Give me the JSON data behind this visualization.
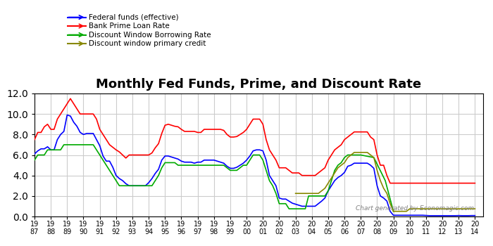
{
  "title": "Monthly Fed Funds, Prime, and Discount Rate",
  "xlabel": "",
  "ylabel": "",
  "ylim": [
    0.0,
    12.0
  ],
  "yticks": [
    0.0,
    2.0,
    4.0,
    6.0,
    8.0,
    10.0,
    12.0
  ],
  "background_color": "#ffffff",
  "grid_color": "#cccccc",
  "watermark": "Chart generated by Economagic.com",
  "legend": [
    {
      "label": "Federal funds (effective)",
      "color": "#0000ff"
    },
    {
      "label": "Bank Prime Loan Rate",
      "color": "#ff0000"
    },
    {
      "label": "Discount Window Borrowing Rate",
      "color": "#00aa00"
    },
    {
      "label": "Discount window primary credit",
      "color": "#888800"
    }
  ],
  "fed_funds": {
    "x": [
      1987.0,
      1987.2,
      1987.4,
      1987.6,
      1987.8,
      1988.0,
      1988.2,
      1988.4,
      1988.6,
      1988.8,
      1989.0,
      1989.2,
      1989.4,
      1989.6,
      1989.8,
      1990.0,
      1990.2,
      1990.4,
      1990.6,
      1990.8,
      1991.0,
      1991.2,
      1991.4,
      1991.6,
      1991.8,
      1992.0,
      1992.2,
      1992.4,
      1992.6,
      1992.8,
      1993.0,
      1993.2,
      1993.4,
      1993.6,
      1993.8,
      1994.0,
      1994.2,
      1994.4,
      1994.6,
      1994.8,
      1995.0,
      1995.2,
      1995.4,
      1995.6,
      1995.8,
      1996.0,
      1996.2,
      1996.4,
      1996.6,
      1996.8,
      1997.0,
      1997.2,
      1997.4,
      1997.6,
      1997.8,
      1998.0,
      1998.2,
      1998.4,
      1998.6,
      1998.8,
      1999.0,
      1999.2,
      1999.4,
      1999.6,
      1999.8,
      2000.0,
      2000.2,
      2000.4,
      2000.6,
      2000.8,
      2001.0,
      2001.2,
      2001.4,
      2001.6,
      2001.8,
      2002.0,
      2002.2,
      2002.4,
      2002.6,
      2002.8,
      2003.0,
      2003.2,
      2003.4,
      2003.6,
      2003.8,
      2004.0,
      2004.2,
      2004.4,
      2004.6,
      2004.8,
      2005.0,
      2005.2,
      2005.4,
      2005.6,
      2005.8,
      2006.0,
      2006.2,
      2006.4,
      2006.6,
      2006.8,
      2007.0,
      2007.2,
      2007.4,
      2007.6,
      2007.8,
      2008.0,
      2008.2,
      2008.4,
      2008.6,
      2008.8,
      2009.0,
      2009.2,
      2009.4,
      2009.6,
      2009.8,
      2010.0,
      2010.2,
      2010.4,
      2010.6,
      2010.8,
      2011.0,
      2011.2,
      2011.4,
      2011.6,
      2011.8,
      2012.0,
      2012.2,
      2012.4,
      2012.6,
      2012.8,
      2013.0,
      2013.2,
      2013.4,
      2013.6,
      2013.8,
      2014.0
    ],
    "y": [
      6.1,
      6.4,
      6.6,
      6.6,
      6.8,
      6.5,
      6.5,
      7.5,
      8.0,
      8.3,
      9.9,
      9.8,
      9.2,
      8.8,
      8.2,
      8.0,
      8.1,
      8.1,
      8.1,
      7.5,
      6.9,
      5.9,
      5.4,
      5.4,
      4.8,
      4.0,
      3.7,
      3.5,
      3.2,
      3.0,
      3.0,
      3.0,
      3.0,
      3.0,
      3.0,
      3.3,
      3.7,
      4.2,
      4.6,
      5.5,
      5.9,
      5.9,
      5.8,
      5.7,
      5.6,
      5.4,
      5.3,
      5.3,
      5.3,
      5.2,
      5.3,
      5.3,
      5.5,
      5.5,
      5.5,
      5.5,
      5.4,
      5.3,
      5.2,
      4.9,
      4.7,
      4.7,
      4.8,
      5.0,
      5.2,
      5.5,
      5.9,
      6.4,
      6.5,
      6.5,
      6.4,
      5.5,
      4.0,
      3.5,
      3.0,
      1.8,
      1.7,
      1.7,
      1.5,
      1.3,
      1.2,
      1.1,
      1.0,
      1.0,
      1.0,
      1.0,
      1.0,
      1.25,
      1.5,
      1.8,
      2.5,
      3.0,
      3.5,
      3.8,
      4.0,
      4.3,
      4.9,
      5.0,
      5.2,
      5.2,
      5.2,
      5.2,
      5.2,
      5.0,
      4.7,
      3.0,
      2.0,
      1.8,
      1.5,
      0.5,
      0.12,
      0.12,
      0.12,
      0.12,
      0.12,
      0.12,
      0.12,
      0.12,
      0.12,
      0.12,
      0.1,
      0.08,
      0.08,
      0.08,
      0.08,
      0.08,
      0.08,
      0.08,
      0.08,
      0.08,
      0.09,
      0.08,
      0.08,
      0.08,
      0.09,
      0.09
    ]
  },
  "prime": {
    "x": [
      1987.0,
      1987.2,
      1987.4,
      1987.6,
      1987.8,
      1988.0,
      1988.2,
      1988.4,
      1988.6,
      1988.8,
      1989.0,
      1989.2,
      1989.4,
      1989.6,
      1989.8,
      1990.0,
      1990.2,
      1990.4,
      1990.6,
      1990.8,
      1991.0,
      1991.2,
      1991.4,
      1991.6,
      1991.8,
      1992.0,
      1992.2,
      1992.4,
      1992.6,
      1992.8,
      1993.0,
      1993.2,
      1993.4,
      1993.6,
      1993.8,
      1994.0,
      1994.2,
      1994.4,
      1994.6,
      1994.8,
      1995.0,
      1995.2,
      1995.4,
      1995.6,
      1995.8,
      1996.0,
      1996.2,
      1996.4,
      1996.6,
      1996.8,
      1997.0,
      1997.2,
      1997.4,
      1997.6,
      1997.8,
      1998.0,
      1998.2,
      1998.4,
      1998.6,
      1998.8,
      1999.0,
      1999.2,
      1999.4,
      1999.6,
      1999.8,
      2000.0,
      2000.2,
      2000.4,
      2000.6,
      2000.8,
      2001.0,
      2001.2,
      2001.4,
      2001.6,
      2001.8,
      2002.0,
      2002.2,
      2002.4,
      2002.6,
      2002.8,
      2003.0,
      2003.2,
      2003.4,
      2003.6,
      2003.8,
      2004.0,
      2004.2,
      2004.4,
      2004.6,
      2004.8,
      2005.0,
      2005.2,
      2005.4,
      2005.6,
      2005.8,
      2006.0,
      2006.2,
      2006.4,
      2006.6,
      2006.8,
      2007.0,
      2007.2,
      2007.4,
      2007.6,
      2007.8,
      2008.0,
      2008.2,
      2008.4,
      2008.6,
      2008.8,
      2009.0,
      2009.2,
      2009.4,
      2009.6,
      2009.8,
      2010.0,
      2010.2,
      2010.4,
      2010.6,
      2010.8,
      2011.0,
      2011.2,
      2011.4,
      2011.6,
      2011.8,
      2012.0,
      2012.2,
      2012.4,
      2012.6,
      2012.8,
      2013.0,
      2013.2,
      2013.4,
      2013.6,
      2013.8,
      2014.0
    ],
    "y": [
      7.5,
      8.2,
      8.2,
      8.75,
      9.0,
      8.5,
      8.5,
      9.5,
      10.0,
      10.5,
      11.0,
      11.5,
      11.0,
      10.5,
      10.0,
      10.0,
      10.0,
      10.0,
      10.0,
      9.5,
      8.5,
      8.0,
      7.5,
      7.0,
      6.75,
      6.5,
      6.3,
      6.0,
      5.7,
      6.0,
      6.0,
      6.0,
      6.0,
      6.0,
      6.0,
      6.0,
      6.2,
      6.7,
      7.1,
      8.1,
      8.9,
      9.0,
      8.9,
      8.8,
      8.75,
      8.5,
      8.3,
      8.3,
      8.3,
      8.3,
      8.2,
      8.2,
      8.5,
      8.5,
      8.5,
      8.5,
      8.5,
      8.5,
      8.4,
      8.0,
      7.75,
      7.75,
      7.8,
      8.0,
      8.2,
      8.5,
      9.0,
      9.5,
      9.5,
      9.5,
      9.0,
      7.5,
      6.5,
      6.0,
      5.5,
      4.75,
      4.75,
      4.75,
      4.5,
      4.25,
      4.25,
      4.25,
      4.0,
      4.0,
      4.0,
      4.0,
      4.0,
      4.25,
      4.5,
      4.75,
      5.5,
      6.0,
      6.5,
      6.75,
      7.0,
      7.5,
      7.75,
      8.0,
      8.25,
      8.25,
      8.25,
      8.25,
      8.25,
      7.75,
      7.5,
      6.0,
      5.0,
      5.0,
      4.0,
      3.25,
      3.25,
      3.25,
      3.25,
      3.25,
      3.25,
      3.25,
      3.25,
      3.25,
      3.25,
      3.25,
      3.25,
      3.25,
      3.25,
      3.25,
      3.25,
      3.25,
      3.25,
      3.25,
      3.25,
      3.25,
      3.25,
      3.25,
      3.25,
      3.25,
      3.25,
      3.25
    ]
  },
  "discount": {
    "x": [
      1987.0,
      1987.2,
      1987.4,
      1987.6,
      1987.8,
      1988.0,
      1988.2,
      1988.4,
      1988.6,
      1988.8,
      1989.0,
      1989.2,
      1989.4,
      1989.6,
      1989.8,
      1990.0,
      1990.2,
      1990.4,
      1990.6,
      1990.8,
      1991.0,
      1991.2,
      1991.4,
      1991.6,
      1991.8,
      1992.0,
      1992.2,
      1992.4,
      1992.6,
      1992.8,
      1993.0,
      1993.2,
      1993.4,
      1993.6,
      1993.8,
      1994.0,
      1994.2,
      1994.4,
      1994.6,
      1994.8,
      1995.0,
      1995.2,
      1995.4,
      1995.6,
      1995.8,
      1996.0,
      1996.2,
      1996.4,
      1996.6,
      1996.8,
      1997.0,
      1997.2,
      1997.4,
      1997.6,
      1997.8,
      1998.0,
      1998.2,
      1998.4,
      1998.6,
      1998.8,
      1999.0,
      1999.2,
      1999.4,
      1999.6,
      1999.8,
      2000.0,
      2000.2,
      2000.4,
      2000.6,
      2000.8,
      2001.0,
      2001.2,
      2001.4,
      2001.6,
      2001.8,
      2002.0,
      2002.2,
      2002.4,
      2002.6,
      2002.8,
      2003.0,
      2003.2,
      2003.4,
      2003.6,
      2003.8,
      2004.0,
      2004.2,
      2004.4,
      2004.6,
      2004.8,
      2005.0,
      2005.2,
      2005.4,
      2005.6,
      2005.8,
      2006.0,
      2006.2,
      2006.4,
      2006.6,
      2006.8,
      2007.0,
      2007.8,
      2008.5,
      2009.0
    ],
    "y": [
      5.5,
      6.0,
      6.0,
      6.0,
      6.5,
      6.5,
      6.5,
      6.5,
      6.5,
      7.0,
      7.0,
      7.0,
      7.0,
      7.0,
      7.0,
      7.0,
      7.0,
      7.0,
      7.0,
      6.5,
      6.0,
      5.5,
      5.0,
      4.5,
      4.0,
      3.5,
      3.0,
      3.0,
      3.0,
      3.0,
      3.0,
      3.0,
      3.0,
      3.0,
      3.0,
      3.0,
      3.0,
      3.5,
      4.0,
      4.75,
      5.25,
      5.25,
      5.25,
      5.25,
      5.0,
      5.0,
      5.0,
      5.0,
      5.0,
      5.0,
      5.0,
      5.0,
      5.0,
      5.0,
      5.0,
      5.0,
      5.0,
      5.0,
      5.0,
      4.75,
      4.5,
      4.5,
      4.5,
      4.75,
      5.0,
      5.0,
      5.5,
      6.0,
      6.0,
      6.0,
      5.5,
      4.5,
      3.5,
      3.0,
      2.25,
      1.25,
      1.25,
      1.25,
      0.75,
      0.75,
      0.75,
      0.75,
      0.75,
      0.75,
      2.0,
      2.0,
      2.0,
      2.0,
      2.0,
      2.0,
      2.5,
      3.5,
      4.5,
      5.0,
      5.25,
      5.75,
      6.0,
      6.0,
      6.0,
      6.0,
      6.0,
      5.75,
      3.5,
      0.5
    ]
  },
  "primary_credit": {
    "x": [
      2003.0,
      2003.2,
      2003.4,
      2003.6,
      2003.8,
      2004.0,
      2004.2,
      2004.4,
      2004.6,
      2004.8,
      2005.0,
      2005.2,
      2005.4,
      2005.6,
      2005.8,
      2006.0,
      2006.2,
      2006.4,
      2006.6,
      2006.8,
      2007.0,
      2007.2,
      2007.4,
      2007.6,
      2007.8,
      2008.0,
      2008.2,
      2008.4,
      2008.6,
      2008.8,
      2009.0,
      2009.2,
      2009.4,
      2009.6,
      2009.8,
      2010.0,
      2010.2,
      2010.4,
      2010.6,
      2010.8,
      2011.0,
      2011.2,
      2011.4,
      2011.6,
      2011.8,
      2012.0,
      2012.2,
      2012.4,
      2012.6,
      2012.8,
      2013.0,
      2013.2,
      2013.4,
      2013.6,
      2013.8,
      2014.0
    ],
    "y": [
      2.25,
      2.25,
      2.25,
      2.25,
      2.25,
      2.25,
      2.25,
      2.25,
      2.5,
      2.75,
      3.25,
      3.75,
      4.25,
      4.75,
      5.0,
      5.25,
      5.75,
      6.0,
      6.25,
      6.25,
      6.25,
      6.25,
      6.25,
      6.0,
      5.75,
      4.5,
      3.5,
      2.75,
      2.25,
      1.25,
      0.5,
      0.5,
      0.5,
      0.5,
      0.5,
      0.75,
      0.75,
      0.75,
      0.75,
      0.75,
      0.75,
      0.75,
      0.75,
      0.75,
      0.75,
      0.75,
      0.75,
      0.75,
      0.75,
      0.75,
      0.75,
      0.75,
      0.75,
      0.75,
      0.75,
      0.75
    ]
  }
}
